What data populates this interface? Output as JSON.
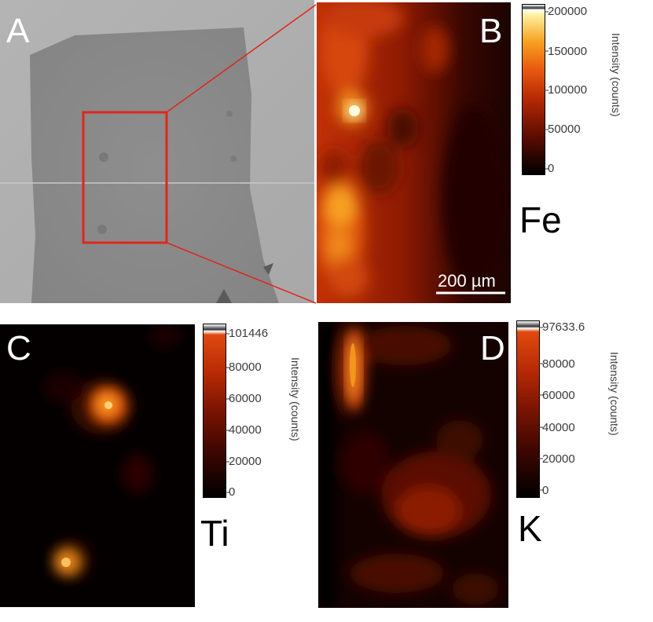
{
  "panels": {
    "a": {
      "letter": "A"
    },
    "b": {
      "letter": "B",
      "element": "Fe",
      "scalebar": "200 µm",
      "colorbar": {
        "label": "Intensity (counts)",
        "ticks": [
          "200000",
          "150000",
          "100000",
          "50000",
          "0"
        ]
      }
    },
    "c": {
      "letter": "C",
      "element": "Ti",
      "colorbar": {
        "label": "Intensity (counts)",
        "ticks": [
          "101446",
          "80000",
          "60000",
          "40000",
          "20000",
          "0"
        ]
      }
    },
    "d": {
      "letter": "D",
      "element": "K",
      "colorbar": {
        "label": "Intensity (counts)",
        "ticks": [
          "97633.6",
          "80000",
          "60000",
          "40000",
          "20000",
          "0"
        ]
      }
    }
  },
  "colors": {
    "highlight": "#e0261b",
    "hot_colormap": [
      "#000000",
      "#5a0c00",
      "#b72a05",
      "#e85a10",
      "#f7a020",
      "#fff0a0"
    ]
  }
}
